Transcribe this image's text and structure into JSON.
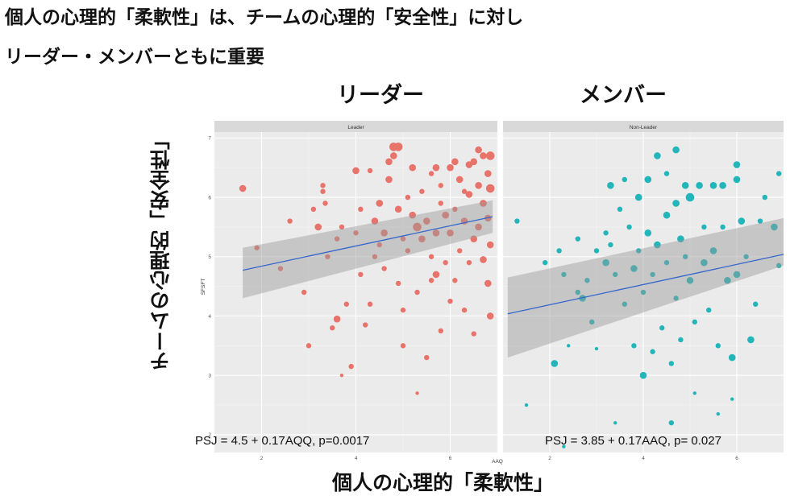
{
  "headline": {
    "line1": "個人の心理的「柔軟性」は、チームの心理的「安全性」に対し",
    "line2": "リーダー・メンバーともに重要"
  },
  "captions": {
    "left_panel": "リーダー",
    "right_panel": "メンバー",
    "y_axis": "チームの心理的「安全性」",
    "x_axis": "個人の心理的「柔軟性」"
  },
  "chart_data": {
    "type": "scatter",
    "xlabel": "AAQ",
    "ylabel": "SFSFT",
    "xlim": [
      1,
      7
    ],
    "ylim": [
      1.7,
      7.1
    ],
    "x_ticks": [
      2,
      4,
      6
    ],
    "y_ticks": [
      2,
      3,
      4,
      5,
      6,
      7
    ],
    "grid": true,
    "panels": [
      {
        "strip": "Leader",
        "color": "#e8736a",
        "equation": "PSJ = 4.5 + 0.17AQQ, p=0.0017",
        "fit": {
          "intercept": 4.5,
          "slope": 0.17,
          "x_range": [
            1.6,
            6.9
          ]
        },
        "ci": {
          "lower_at_x0": 4.3,
          "upper_at_x0": 5.15,
          "lower_at_x1": 5.4,
          "upper_at_x1": 5.95
        },
        "points": [
          [
            1.6,
            6.15,
            3
          ],
          [
            1.9,
            5.15,
            2
          ],
          [
            2.6,
            5.6,
            2
          ],
          [
            2.4,
            4.8,
            2
          ],
          [
            2.9,
            4.4,
            2
          ],
          [
            3.0,
            3.5,
            2
          ],
          [
            3.1,
            5.8,
            2
          ],
          [
            3.2,
            5.5,
            3
          ],
          [
            3.3,
            6.1,
            2
          ],
          [
            3.3,
            6.2,
            2
          ],
          [
            3.35,
            5.9,
            2
          ],
          [
            3.4,
            5.0,
            2
          ],
          [
            3.6,
            5.3,
            2
          ],
          [
            3.5,
            3.8,
            2
          ],
          [
            3.6,
            3.95,
            3
          ],
          [
            3.7,
            5.5,
            2
          ],
          [
            3.8,
            4.2,
            2
          ],
          [
            3.7,
            3.0,
            1
          ],
          [
            3.9,
            3.15,
            2
          ],
          [
            4.0,
            6.45,
            3
          ],
          [
            4.1,
            4.7,
            2
          ],
          [
            4.0,
            5.4,
            2
          ],
          [
            4.1,
            5.8,
            2
          ],
          [
            4.2,
            3.85,
            2
          ],
          [
            4.3,
            6.45,
            2
          ],
          [
            4.3,
            4.2,
            2
          ],
          [
            4.4,
            5.0,
            2
          ],
          [
            4.4,
            5.6,
            3
          ],
          [
            4.5,
            5.9,
            3
          ],
          [
            4.5,
            5.2,
            2
          ],
          [
            4.6,
            4.8,
            2
          ],
          [
            4.6,
            5.4,
            3
          ],
          [
            4.7,
            6.6,
            3
          ],
          [
            4.7,
            6.3,
            3
          ],
          [
            4.8,
            6.85,
            4
          ],
          [
            4.8,
            6.7,
            3
          ],
          [
            4.9,
            6.85,
            4
          ],
          [
            4.9,
            4.55,
            2
          ],
          [
            4.9,
            5.8,
            3
          ],
          [
            5.0,
            5.3,
            2
          ],
          [
            5.0,
            4.1,
            2
          ],
          [
            5.0,
            3.5,
            2
          ],
          [
            5.1,
            6.0,
            2
          ],
          [
            5.1,
            5.1,
            2
          ],
          [
            5.2,
            6.5,
            3
          ],
          [
            5.2,
            5.7,
            3
          ],
          [
            5.3,
            5.5,
            4
          ],
          [
            5.3,
            4.4,
            2
          ],
          [
            5.3,
            2.7,
            1
          ],
          [
            5.4,
            6.1,
            2
          ],
          [
            5.4,
            5.3,
            3
          ],
          [
            5.5,
            5.6,
            3
          ],
          [
            5.5,
            3.3,
            2
          ],
          [
            5.6,
            6.4,
            2
          ],
          [
            5.6,
            5.0,
            2
          ],
          [
            5.6,
            4.6,
            2
          ],
          [
            5.7,
            6.5,
            3
          ],
          [
            5.7,
            5.4,
            3
          ],
          [
            5.7,
            4.7,
            3
          ],
          [
            5.8,
            6.2,
            2
          ],
          [
            5.8,
            3.75,
            2
          ],
          [
            5.8,
            5.9,
            2
          ],
          [
            5.9,
            4.9,
            2
          ],
          [
            5.9,
            5.7,
            3
          ],
          [
            6.0,
            6.5,
            3
          ],
          [
            6.0,
            5.4,
            3
          ],
          [
            6.0,
            4.25,
            2
          ],
          [
            6.1,
            6.6,
            3
          ],
          [
            6.1,
            5.8,
            2
          ],
          [
            6.1,
            4.6,
            2
          ],
          [
            6.2,
            6.3,
            3
          ],
          [
            6.2,
            5.1,
            2
          ],
          [
            6.3,
            6.1,
            2
          ],
          [
            6.3,
            5.6,
            3
          ],
          [
            6.3,
            4.1,
            2
          ],
          [
            6.4,
            6.55,
            3
          ],
          [
            6.4,
            6.05,
            3
          ],
          [
            6.4,
            4.9,
            2
          ],
          [
            6.5,
            6.6,
            3
          ],
          [
            6.5,
            5.3,
            3
          ],
          [
            6.5,
            3.7,
            2
          ],
          [
            6.6,
            6.8,
            3
          ],
          [
            6.6,
            6.2,
            3
          ],
          [
            6.6,
            5.5,
            3
          ],
          [
            6.7,
            6.7,
            3
          ],
          [
            6.7,
            5.9,
            3
          ],
          [
            6.7,
            4.95,
            3
          ],
          [
            6.8,
            6.4,
            3
          ],
          [
            6.8,
            5.65,
            3
          ],
          [
            6.8,
            4.55,
            3
          ],
          [
            6.85,
            6.7,
            4
          ],
          [
            6.85,
            6.15,
            4
          ],
          [
            6.85,
            5.2,
            3
          ],
          [
            6.85,
            4.0,
            3
          ]
        ]
      },
      {
        "strip": "Non-Leader",
        "color": "#22b5b9",
        "equation": "PSJ = 3.85 + 0.17AAQ, p= 0.027",
        "fit": {
          "intercept": 3.85,
          "slope": 0.17,
          "x_range": [
            1.1,
            7.0
          ]
        },
        "ci": {
          "lower_at_x0": 3.3,
          "upper_at_x0": 4.65,
          "lower_at_x1": 4.85,
          "upper_at_x1": 5.65
        },
        "points": [
          [
            1.3,
            5.6,
            2
          ],
          [
            1.5,
            2.5,
            1
          ],
          [
            1.9,
            4.9,
            2
          ],
          [
            2.1,
            3.2,
            3
          ],
          [
            2.2,
            5.1,
            2
          ],
          [
            2.3,
            1.8,
            1
          ],
          [
            2.3,
            4.7,
            2
          ],
          [
            2.4,
            3.5,
            1
          ],
          [
            2.6,
            5.3,
            2
          ],
          [
            2.6,
            4.4,
            2
          ],
          [
            2.7,
            4.3,
            3
          ],
          [
            2.8,
            4.6,
            2
          ],
          [
            2.9,
            3.9,
            2
          ],
          [
            3.0,
            5.1,
            2
          ],
          [
            3.0,
            3.45,
            1
          ],
          [
            3.2,
            5.4,
            2
          ],
          [
            3.2,
            4.9,
            3
          ],
          [
            3.3,
            6.2,
            3
          ],
          [
            3.3,
            5.2,
            2
          ],
          [
            3.4,
            4.7,
            2
          ],
          [
            3.4,
            2.2,
            1
          ],
          [
            3.5,
            5.8,
            2
          ],
          [
            3.6,
            6.3,
            2
          ],
          [
            3.6,
            4.2,
            2
          ],
          [
            3.7,
            5.5,
            2
          ],
          [
            3.8,
            4.8,
            3
          ],
          [
            3.8,
            3.5,
            2
          ],
          [
            3.9,
            6.0,
            3
          ],
          [
            3.9,
            5.1,
            2
          ],
          [
            4.0,
            4.4,
            2
          ],
          [
            4.0,
            3.0,
            3
          ],
          [
            4.1,
            6.3,
            3
          ],
          [
            4.1,
            5.4,
            3
          ],
          [
            4.2,
            4.7,
            2
          ],
          [
            4.2,
            3.4,
            2
          ],
          [
            4.3,
            6.7,
            3
          ],
          [
            4.3,
            5.2,
            3
          ],
          [
            4.4,
            3.8,
            2
          ],
          [
            4.5,
            6.4,
            2
          ],
          [
            4.5,
            5.7,
            3
          ],
          [
            4.5,
            4.9,
            2
          ],
          [
            4.6,
            3.2,
            2
          ],
          [
            4.6,
            2.2,
            2
          ],
          [
            4.7,
            6.8,
            3
          ],
          [
            4.7,
            5.9,
            3
          ],
          [
            4.7,
            4.3,
            2
          ],
          [
            4.8,
            5.3,
            3
          ],
          [
            4.8,
            3.6,
            2
          ],
          [
            4.9,
            6.2,
            3
          ],
          [
            4.9,
            5.0,
            2
          ],
          [
            5.0,
            6.0,
            4
          ],
          [
            5.0,
            4.6,
            3
          ],
          [
            5.1,
            3.9,
            2
          ],
          [
            5.1,
            2.7,
            1
          ],
          [
            5.2,
            6.2,
            3
          ],
          [
            5.3,
            5.5,
            2
          ],
          [
            5.3,
            4.9,
            3
          ],
          [
            5.4,
            4.1,
            2
          ],
          [
            5.5,
            6.2,
            3
          ],
          [
            5.5,
            5.1,
            3
          ],
          [
            5.6,
            3.5,
            2
          ],
          [
            5.6,
            2.35,
            1
          ],
          [
            5.7,
            6.2,
            3
          ],
          [
            5.7,
            5.5,
            2
          ],
          [
            5.8,
            4.6,
            3
          ],
          [
            5.9,
            3.3,
            3
          ],
          [
            5.9,
            2.6,
            1
          ],
          [
            6.0,
            6.55,
            3
          ],
          [
            6.0,
            6.3,
            3
          ],
          [
            6.0,
            4.7,
            3
          ],
          [
            6.1,
            5.6,
            3
          ],
          [
            6.2,
            5.0,
            2
          ],
          [
            6.3,
            3.6,
            3
          ],
          [
            6.4,
            4.2,
            2
          ],
          [
            6.5,
            5.6,
            2
          ],
          [
            6.6,
            6.0,
            2
          ],
          [
            6.8,
            5.5,
            3
          ],
          [
            6.9,
            4.85,
            2
          ],
          [
            6.9,
            6.4,
            2
          ]
        ]
      }
    ]
  }
}
